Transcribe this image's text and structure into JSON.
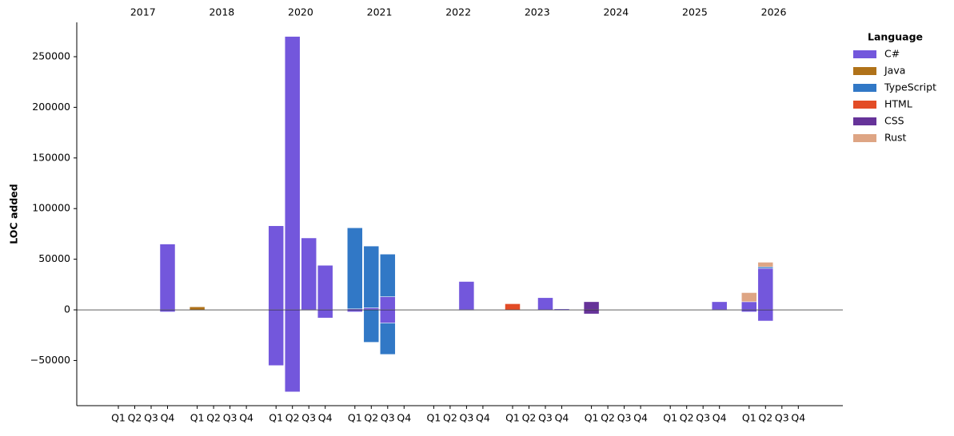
{
  "chart_data": {
    "type": "bar",
    "stacked": true,
    "y_label": "LOC added",
    "legend_title": "Language",
    "legend_position": "outside-right",
    "groups": [
      "2017",
      "2018",
      "2020",
      "2021",
      "2022",
      "2023",
      "2024",
      "2025",
      "2026"
    ],
    "categories": [
      "Q1",
      "Q2",
      "Q3",
      "Q4",
      "Q1",
      "Q2",
      "Q3",
      "Q4",
      "Q1",
      "Q2",
      "Q3",
      "Q4",
      "Q1",
      "Q2",
      "Q3",
      "Q4",
      "Q1",
      "Q2",
      "Q3",
      "Q4",
      "Q1",
      "Q2",
      "Q3",
      "Q4",
      "Q1",
      "Q2",
      "Q3",
      "Q4",
      "Q1",
      "Q2",
      "Q3",
      "Q4",
      "Q1",
      "Q2",
      "Q3",
      "Q4"
    ],
    "ylim": [
      -94600,
      283900
    ],
    "yticks": [
      {
        "value": -50000,
        "label": "−50000"
      },
      0,
      50000,
      100000,
      150000,
      200000,
      250000
    ],
    "series": [
      {
        "name": "C#",
        "color": "#7357dc",
        "values": [
          null,
          null,
          null,
          65000,
          null,
          null,
          null,
          null,
          83000,
          270000,
          71000,
          44000,
          1000,
          2000,
          13000,
          null,
          null,
          null,
          28000,
          null,
          null,
          null,
          12000,
          1000,
          null,
          null,
          null,
          null,
          null,
          null,
          null,
          8000,
          8000,
          41000,
          null,
          null
        ],
        "removed": [
          null,
          null,
          null,
          -2000,
          null,
          null,
          null,
          null,
          -55000,
          -81000,
          -500,
          -8000,
          -2000,
          null,
          -13000,
          null,
          null,
          null,
          -500,
          null,
          null,
          null,
          null,
          -500,
          null,
          null,
          null,
          null,
          null,
          null,
          null,
          -500,
          -2000,
          -11000,
          null,
          null
        ]
      },
      {
        "name": "Java",
        "color": "#b07219",
        "values": [
          null,
          null,
          null,
          null,
          3000,
          null,
          null,
          null,
          null,
          null,
          null,
          null,
          null,
          null,
          null,
          null,
          null,
          null,
          null,
          null,
          null,
          null,
          null,
          null,
          null,
          null,
          null,
          null,
          null,
          null,
          null,
          null,
          null,
          null,
          null,
          null
        ]
      },
      {
        "name": "TypeScript",
        "color": "#3178c6",
        "values": [
          null,
          null,
          null,
          null,
          null,
          null,
          null,
          null,
          null,
          null,
          null,
          null,
          80000,
          61000,
          42000,
          null,
          null,
          null,
          null,
          null,
          null,
          null,
          null,
          null,
          null,
          null,
          null,
          null,
          null,
          null,
          null,
          null,
          null,
          1500,
          null,
          null
        ],
        "removed": [
          null,
          null,
          null,
          null,
          null,
          null,
          null,
          null,
          null,
          null,
          null,
          null,
          null,
          -32000,
          -31000,
          null,
          null,
          null,
          null,
          null,
          null,
          null,
          null,
          null,
          null,
          null,
          null,
          null,
          null,
          null,
          null,
          null,
          null,
          null,
          null,
          null
        ]
      },
      {
        "name": "HTML",
        "color": "#e34c26",
        "values": [
          null,
          null,
          null,
          null,
          null,
          null,
          null,
          null,
          null,
          null,
          null,
          null,
          null,
          null,
          null,
          null,
          null,
          null,
          null,
          null,
          6000,
          null,
          null,
          null,
          null,
          null,
          null,
          null,
          null,
          null,
          null,
          null,
          null,
          null,
          null,
          null
        ]
      },
      {
        "name": "CSS",
        "color": "#663399",
        "values": [
          null,
          null,
          null,
          null,
          null,
          null,
          null,
          null,
          null,
          null,
          null,
          null,
          null,
          null,
          null,
          null,
          null,
          null,
          null,
          null,
          null,
          null,
          null,
          null,
          8000,
          null,
          null,
          null,
          null,
          null,
          null,
          null,
          null,
          null,
          null,
          null
        ],
        "removed": [
          null,
          null,
          null,
          null,
          null,
          null,
          null,
          null,
          null,
          null,
          null,
          null,
          null,
          null,
          null,
          null,
          null,
          null,
          null,
          null,
          null,
          null,
          null,
          null,
          -4000,
          null,
          null,
          null,
          null,
          null,
          null,
          null,
          null,
          null,
          null,
          null
        ]
      },
      {
        "name": "Rust",
        "color": "#dea584",
        "values": [
          null,
          null,
          null,
          null,
          null,
          null,
          null,
          null,
          null,
          null,
          null,
          null,
          null,
          null,
          null,
          null,
          null,
          null,
          null,
          null,
          null,
          null,
          null,
          null,
          null,
          null,
          null,
          null,
          null,
          null,
          null,
          null,
          9000,
          4500,
          null,
          null
        ]
      }
    ]
  }
}
